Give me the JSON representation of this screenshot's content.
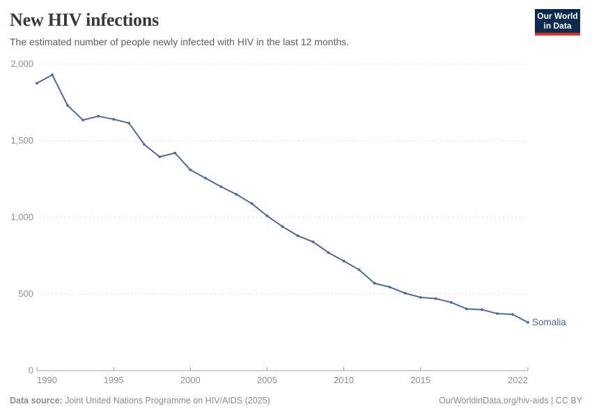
{
  "header": {
    "title": "New HIV infections",
    "subtitle": "The estimated number of people newly infected with HIV in the last 12 months.",
    "logo": {
      "line1": "Our World",
      "line2": "in Data"
    }
  },
  "chart_data": {
    "type": "line",
    "title": "New HIV infections",
    "entity": "Somalia",
    "x": [
      1990,
      1991,
      1992,
      1993,
      1994,
      1995,
      1996,
      1997,
      1998,
      1999,
      2000,
      2001,
      2002,
      2003,
      2004,
      2005,
      2006,
      2007,
      2008,
      2009,
      2010,
      2011,
      2012,
      2013,
      2014,
      2015,
      2016,
      2017,
      2018,
      2019,
      2020,
      2021,
      2022
    ],
    "series": [
      {
        "name": "Somalia",
        "color": "#4C6A9C",
        "values": [
          1875,
          1930,
          1730,
          1635,
          1660,
          1640,
          1615,
          1475,
          1395,
          1420,
          1310,
          1255,
          1200,
          1150,
          1090,
          1010,
          940,
          880,
          840,
          770,
          715,
          658,
          570,
          545,
          505,
          478,
          470,
          445,
          403,
          398,
          372,
          367,
          315
        ]
      }
    ],
    "xlim": [
      1990,
      2022
    ],
    "ylim": [
      0,
      2000
    ],
    "xticks": [
      1990,
      1995,
      2000,
      2005,
      2010,
      2015,
      2022
    ],
    "xtick_labels": [
      "1990",
      "1995",
      "2000",
      "2005",
      "2010",
      "2015",
      "2022"
    ],
    "yticks": [
      0,
      500,
      1000,
      1500,
      2000
    ],
    "ytick_labels": [
      "0",
      "500",
      "1,000",
      "1,500",
      "2,000"
    ],
    "grid": "horizontal-dashed",
    "legend_position": "end-of-line-label",
    "end_label": "Somalia"
  },
  "footer": {
    "source_label": "Data source:",
    "source_text": " Joint United Nations Programme on HIV/AIDS (2025)",
    "attribution": "OurWorldinData.org/hiv-aids | CC BY"
  },
  "colors": {
    "line": "#4C6A9C",
    "grid": "#dcdcdc",
    "axis": "#a0a0a0",
    "tick_text": "#8f8f8f",
    "end_label_text": "#4C6A9C"
  }
}
